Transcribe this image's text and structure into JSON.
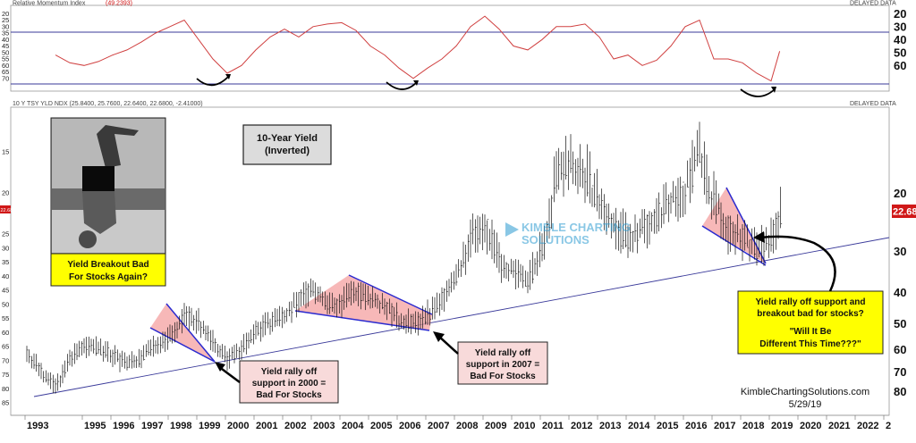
{
  "rsi_panel": {
    "title": "Relative Momentum Index",
    "value": "(49.2393)",
    "delayed": "DELAYED DATA",
    "left_ticks": [
      "20",
      "25",
      "30",
      "35",
      "40",
      "45",
      "50",
      "55",
      "60",
      "65",
      "70"
    ],
    "right_ticks": [
      "20",
      "30",
      "40",
      "50",
      "60"
    ],
    "ref_lines": [
      30,
      70
    ]
  },
  "price_panel": {
    "title": "10 Y TSY YLD NDX (25.8400, 25.7600, 22.6400, 22.6800, -2.41000)",
    "delayed": "DELAYED DATA",
    "left_ticks": [
      "15",
      "20",
      "25",
      "30",
      "35",
      "40",
      "45",
      "50",
      "55",
      "60",
      "65",
      "70",
      "75",
      "80",
      "85"
    ],
    "right_ticks": [
      "20",
      "30",
      "40",
      "50",
      "60",
      "70",
      "80"
    ],
    "last_value": "22.68",
    "left_marker": "22.680"
  },
  "x_axis": {
    "ticks": [
      "1993",
      "1995",
      "1996",
      "1997",
      "1998",
      "1999",
      "2000",
      "2001",
      "2002",
      "2003",
      "2004",
      "2005",
      "2006",
      "2007",
      "2008",
      "2009",
      "2010",
      "2011",
      "2012",
      "2013",
      "2014",
      "2015",
      "2016",
      "2017",
      "2018",
      "2019",
      "2020",
      "2021",
      "2022",
      "2"
    ]
  },
  "annotations": {
    "title_line1": "10-Year Yield",
    "title_line2": "(Inverted)",
    "photo_caption_line1": "Yield Breakout Bad",
    "photo_caption_line2": "For Stocks Again?",
    "note_2000_line1": "Yield rally off",
    "note_2000_line2": "support in 2000 =",
    "note_2000_line3": "Bad For Stocks",
    "note_2007_line1": "Yield rally off",
    "note_2007_line2": "support in 2007 =",
    "note_2007_line3": "Bad For Stocks",
    "note_now_line1": "Yield rally off support and",
    "note_now_line2": "breakout bad for stocks?",
    "note_now_line3": "\"Will It Be",
    "note_now_line4": "Different This Time???\"",
    "watermark_line1": "KIMBLE CHARTING",
    "watermark_line2": "SOLUTIONS",
    "site": "KimbleChartingSolutions.com",
    "date": "5/29/19"
  },
  "colors": {
    "rsi_line": "#d04040",
    "ref_line": "#3a3a9a",
    "bars": "#111111",
    "trend_line": "#3a3a9a",
    "wedge_fill": "#f4a0a0",
    "wedge_edge": "#2a2ad0",
    "callout_fill": "#f8dada",
    "yellow_box": "#ffff00",
    "last_value_bg": "#d01818"
  },
  "chart_data": [
    {
      "type": "line",
      "title": "Relative Momentum Index",
      "y_inverted": true,
      "ylim": [
        15,
        75
      ],
      "reference_lines": [
        30,
        70
      ],
      "series": [
        {
          "x": [
            1994.0,
            1994.5,
            1995.0,
            1995.5,
            1996.0,
            1996.5,
            1997.0,
            1997.5,
            1998.0,
            1998.5,
            1999.0,
            1999.5,
            2000.0,
            2000.5,
            2001.0,
            2001.5,
            2002.0,
            2002.5,
            2003.0,
            2003.5,
            2004.0,
            2004.5,
            2005.0,
            2005.5,
            2006.0,
            2006.5,
            2007.0,
            2007.5,
            2008.0,
            2008.5,
            2009.0,
            2009.5,
            2010.0,
            2010.5,
            2011.0,
            2011.5,
            2012.0,
            2012.5,
            2013.0,
            2013.5,
            2014.0,
            2014.5,
            2015.0,
            2015.5,
            2016.0,
            2016.5,
            2017.0,
            2017.5,
            2018.0,
            2018.5,
            2019.0,
            2019.3
          ],
          "values": [
            52,
            58,
            60,
            57,
            52,
            48,
            42,
            35,
            30,
            25,
            40,
            55,
            66,
            60,
            48,
            38,
            32,
            38,
            30,
            28,
            27,
            33,
            45,
            52,
            62,
            70,
            62,
            55,
            45,
            30,
            22,
            32,
            45,
            48,
            40,
            30,
            30,
            28,
            38,
            55,
            52,
            60,
            56,
            45,
            30,
            25,
            55,
            55,
            58,
            66,
            72,
            49
          ]
        }
      ]
    },
    {
      "type": "line",
      "title": "10 Y TSY YLD NDX",
      "subtitle": "(Inverted)",
      "y_inverted": true,
      "ylim": [
        10,
        88
      ],
      "series": [
        {
          "x": [
            1993.0,
            1993.5,
            1994.0,
            1994.5,
            1995.0,
            1995.5,
            1996.0,
            1996.5,
            1997.0,
            1997.5,
            1998.0,
            1998.5,
            1999.0,
            1999.5,
            2000.0,
            2000.5,
            2001.0,
            2001.5,
            2002.0,
            2002.5,
            2003.0,
            2003.5,
            2004.0,
            2004.5,
            2005.0,
            2005.5,
            2006.0,
            2006.5,
            2007.0,
            2007.5,
            2008.0,
            2008.5,
            2009.0,
            2009.5,
            2010.0,
            2010.5,
            2011.0,
            2011.5,
            2012.0,
            2012.5,
            2013.0,
            2013.5,
            2014.0,
            2014.5,
            2015.0,
            2015.5,
            2016.0,
            2016.5,
            2017.0,
            2017.5,
            2018.0,
            2018.5,
            2019.0,
            2019.4
          ],
          "values": [
            62,
            70,
            78,
            65,
            58,
            60,
            63,
            67,
            64,
            58,
            55,
            48,
            50,
            58,
            64,
            60,
            53,
            50,
            48,
            42,
            40,
            44,
            44,
            40,
            42,
            44,
            50,
            50,
            48,
            42,
            37,
            28,
            25,
            33,
            35,
            38,
            30,
            18,
            16,
            18,
            22,
            26,
            28,
            26,
            24,
            21,
            20,
            15,
            22,
            26,
            28,
            30,
            28,
            22.68
          ]
        }
      ],
      "last_value": 22.68
    }
  ]
}
